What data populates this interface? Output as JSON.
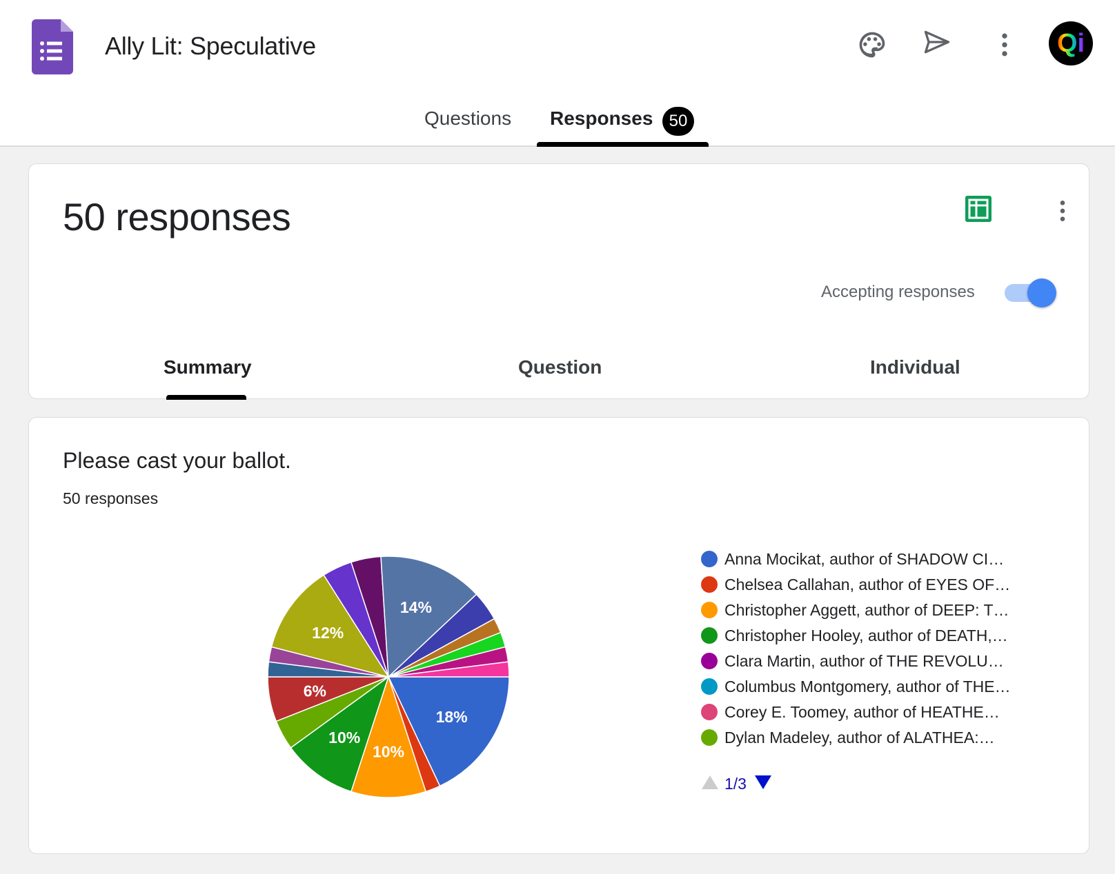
{
  "app": {
    "title": "Ally Lit: Speculative",
    "avatar_initials": "Qi",
    "brand_color": "#673ab7"
  },
  "tabs": {
    "questions": "Questions",
    "responses": "Responses",
    "responses_badge": "50"
  },
  "summary_card": {
    "count_label": "50 responses",
    "accepting_label": "Accepting responses",
    "accepting": true,
    "subtabs": [
      "Summary",
      "Question",
      "Individual"
    ]
  },
  "question": {
    "title": "Please cast your ballot.",
    "response_count": "50 responses"
  },
  "chart_data": {
    "type": "pie",
    "title": "Please cast your ballot.",
    "total": 50,
    "slices": [
      {
        "percent": 18,
        "color": "#3366cc",
        "label": "18%"
      },
      {
        "percent": 2,
        "color": "#dc3912",
        "label": ""
      },
      {
        "percent": 10,
        "color": "#ff9900",
        "label": "10%"
      },
      {
        "percent": 10,
        "color": "#109618",
        "label": "10%"
      },
      {
        "percent": 4,
        "color": "#66aa00",
        "label": ""
      },
      {
        "percent": 6,
        "color": "#b82e2e",
        "label": "6%"
      },
      {
        "percent": 2,
        "color": "#316395",
        "label": ""
      },
      {
        "percent": 2,
        "color": "#994499",
        "label": ""
      },
      {
        "percent": 12,
        "color": "#aaaa11",
        "label": "12%"
      },
      {
        "percent": 4,
        "color": "#6633cc",
        "label": ""
      },
      {
        "percent": 4,
        "color": "#651067",
        "label": ""
      },
      {
        "percent": 14,
        "color": "#5574a6",
        "label": "14%"
      },
      {
        "percent": 4,
        "color": "#3b3eac",
        "label": ""
      },
      {
        "percent": 2,
        "color": "#b77322",
        "label": ""
      },
      {
        "percent": 2,
        "color": "#16d620",
        "label": ""
      },
      {
        "percent": 2,
        "color": "#b91383",
        "label": ""
      },
      {
        "percent": 2,
        "color": "#f4359e",
        "label": ""
      }
    ],
    "legend": [
      {
        "label": "Anna Mocikat, author of SHADOW CI…",
        "color": "#3366cc"
      },
      {
        "label": "Chelsea Callahan, author of EYES OF…",
        "color": "#dc3912"
      },
      {
        "label": "Christopher Aggett, author of DEEP: T…",
        "color": "#ff9900"
      },
      {
        "label": "Christopher Hooley, author of DEATH,…",
        "color": "#109618"
      },
      {
        "label": "Clara Martin, author of THE REVOLU…",
        "color": "#990099"
      },
      {
        "label": "Columbus Montgomery, author of THE…",
        "color": "#0099c6"
      },
      {
        "label": "Corey E. Toomey, author of HEATHE…",
        "color": "#dd4477"
      },
      {
        "label": "Dylan Madeley, author of ALATHEA:…",
        "color": "#66aa00"
      }
    ],
    "legend_page": "1/3"
  }
}
